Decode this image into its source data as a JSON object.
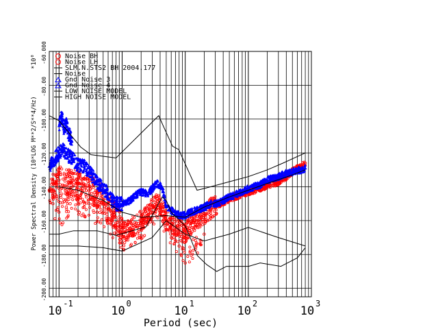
{
  "chart_data": {
    "type": "scatter",
    "title": "",
    "xlabel": "Period (sec)",
    "ylabel": "Power Spectral Density (10*LOG M**2/S**4/Hz)",
    "y_multiplier": "*10⁰",
    "x_scale": "log",
    "xlim": [
      0.07,
      1000
    ],
    "ylim": [
      -205,
      -60
    ],
    "grid": true,
    "legend_position": "top-left",
    "x_ticks": [
      {
        "base": "10",
        "exp": "-1",
        "value": 0.1
      },
      {
        "base": "10",
        "exp": "0",
        "value": 1
      },
      {
        "base": "10",
        "exp": "1",
        "value": 10
      },
      {
        "base": "10",
        "exp": "2",
        "value": 100
      },
      {
        "base": "10",
        "exp": "3",
        "value": 1000
      }
    ],
    "y_ticks": [
      {
        "label": "-60.000",
        "value": -60
      },
      {
        "label": "-80.00",
        "value": -80
      },
      {
        "label": "-100.00",
        "value": -100
      },
      {
        "label": "-120.00",
        "value": -120
      },
      {
        "label": "-140.00",
        "value": -140
      },
      {
        "label": "-160.00",
        "value": -160
      },
      {
        "label": "-180.00",
        "value": -180
      },
      {
        "label": "-200.00",
        "value": -200
      }
    ],
    "legend": [
      {
        "symbol": "circle",
        "color": "#ff0000",
        "label": "Noise BH"
      },
      {
        "symbol": "circle",
        "color": "#ff0000",
        "label": "Noise LH"
      },
      {
        "symbol": "line",
        "color": "#000000",
        "label": "SLM.N.STS2 BH  2004.177"
      },
      {
        "symbol": "line",
        "color": "#000000",
        "label": "Noise"
      },
      {
        "symbol": "triangle",
        "color": "#0000ff",
        "label": "Gnd Noise 3"
      },
      {
        "symbol": "triangle",
        "color": "#0000ff",
        "label": "Gnd Noise 4"
      },
      {
        "symbol": "line",
        "color": "#000000",
        "label": "LOW NOISE MODEL"
      },
      {
        "symbol": "line",
        "color": "#000000",
        "label": "HIGH NOISE MODEL"
      }
    ],
    "series": [
      {
        "name": "Noise BH",
        "color": "#ff0000",
        "marker": "circle",
        "x": [
          0.07,
          0.08,
          0.09,
          0.1,
          0.12,
          0.14,
          0.17,
          0.2,
          0.25,
          0.3,
          0.4,
          0.5,
          0.6,
          0.8,
          1.0,
          1.2,
          1.5,
          2,
          2.5,
          3,
          3.5,
          4,
          5,
          6,
          7,
          8,
          9,
          10,
          12,
          14,
          17,
          20,
          25,
          30,
          40,
          50,
          60,
          80,
          100,
          150,
          200,
          300,
          400,
          500,
          700,
          800
        ],
        "y": [
          -142,
          -138,
          -140,
          -136,
          -140,
          -137,
          -139,
          -138,
          -142,
          -140,
          -144,
          -148,
          -153,
          -158,
          -167,
          -166,
          -163,
          -160,
          -157,
          -152,
          -150,
          -151,
          -160,
          -161,
          -166,
          -165,
          -167,
          -167,
          -163,
          -160,
          -158,
          -156,
          -153,
          -151,
          -149,
          -147,
          -146,
          -144,
          -143,
          -141,
          -139,
          -137,
          -134,
          -131,
          -128,
          -126
        ]
      },
      {
        "name": "Noise LH",
        "color": "#ff0000",
        "marker": "circle",
        "x": [
          0.08,
          0.1,
          0.13,
          0.15,
          0.2,
          0.25,
          0.3,
          0.4,
          0.5,
          0.6,
          0.8,
          1.0,
          1.2,
          1.5,
          2,
          3,
          4,
          5,
          6,
          8,
          10,
          12,
          15,
          20
        ],
        "y": [
          -150,
          -155,
          -152,
          -150,
          -148,
          -152,
          -150,
          -155,
          -155,
          -160,
          -163,
          -173,
          -170,
          -168,
          -165,
          -158,
          -152,
          -165,
          -170,
          -175,
          -185,
          -178,
          -174,
          -168
        ]
      },
      {
        "name": "Gnd Noise 3",
        "color": "#0000ff",
        "marker": "triangle",
        "x": [
          0.07,
          0.08,
          0.09,
          0.1,
          0.11,
          0.12,
          0.13,
          0.15,
          0.17,
          0.2,
          0.25,
          0.3,
          0.4,
          0.5,
          0.6,
          0.7,
          0.8,
          1.0,
          1.2,
          1.5,
          2,
          2.5,
          3,
          3.5,
          4,
          4.5,
          5,
          6,
          7,
          8,
          10,
          12,
          15,
          20,
          25,
          30,
          40,
          50,
          60,
          80,
          100,
          150,
          200,
          300,
          400,
          500,
          700,
          800
        ],
        "y": [
          -128,
          -125,
          -122,
          -120,
          -119,
          -118,
          -121,
          -122,
          -124,
          -127,
          -128,
          -131,
          -137,
          -141,
          -144,
          -148,
          -150,
          -150,
          -149,
          -146,
          -143,
          -144,
          -141,
          -138,
          -139,
          -143,
          -152,
          -154,
          -155,
          -157,
          -157,
          -155,
          -154,
          -152,
          -150,
          -150,
          -148,
          -146,
          -145,
          -143,
          -141,
          -139,
          -136,
          -134,
          -132,
          -131,
          -130,
          -129
        ]
      },
      {
        "name": "Gnd Noise 4",
        "color": "#0000ff",
        "marker": "triangle",
        "x": [
          0.1,
          0.11,
          0.12,
          0.13,
          0.14,
          0.15,
          0.16
        ],
        "y": [
          -104,
          -98,
          -106,
          -102,
          -108,
          -110,
          -113
        ]
      },
      {
        "name": "SLM.N.STS2 BH  2004.177",
        "color": "#000000",
        "marker": "line",
        "x": [
          0.1,
          0.2,
          0.5,
          1,
          2,
          5,
          10,
          20,
          50,
          100,
          200,
          500,
          800
        ],
        "y": [
          -140,
          -142,
          -148,
          -155,
          -158,
          -157,
          -158,
          -152,
          -146,
          -142,
          -138,
          -133,
          -130
        ]
      },
      {
        "name": "Noise",
        "color": "#000000",
        "marker": "line",
        "x": [
          0.07,
          0.1,
          0.2,
          0.5,
          1,
          3,
          5,
          10,
          20,
          50,
          100,
          300,
          800
        ],
        "y": [
          -175,
          -175,
          -175,
          -176,
          -178,
          -170,
          -160,
          -168,
          -172,
          -168,
          -164,
          -170,
          -175
        ]
      },
      {
        "name": "LOW NOISE MODEL",
        "color": "#000000",
        "marker": "line",
        "x": [
          0.07,
          0.1,
          0.17,
          0.4,
          0.8,
          1.24,
          2.4,
          4.3,
          5,
          6,
          10,
          12,
          15.6,
          21.9,
          31.6,
          45,
          70,
          101,
          154,
          328,
          600,
          800
        ],
        "y": [
          -168,
          -168,
          -166,
          -166,
          -168.7,
          -166.7,
          -163.7,
          -146,
          -148,
          -155,
          -163,
          -170,
          -180.7,
          -186,
          -190,
          -187,
          -187,
          -187,
          -185,
          -187,
          -182,
          -176
        ]
      },
      {
        "name": "HIGH NOISE MODEL",
        "color": "#000000",
        "marker": "line",
        "x": [
          0.07,
          0.1,
          0.22,
          0.32,
          0.8,
          3.8,
          4.6,
          6.3,
          7.9,
          15.4,
          20,
          50,
          100,
          200,
          354,
          800
        ],
        "y": [
          -98,
          -101,
          -116.5,
          -121,
          -123,
          -98,
          -105,
          -116,
          -118,
          -142,
          -141,
          -137,
          -134,
          -130,
          -126,
          -120
        ]
      }
    ]
  }
}
